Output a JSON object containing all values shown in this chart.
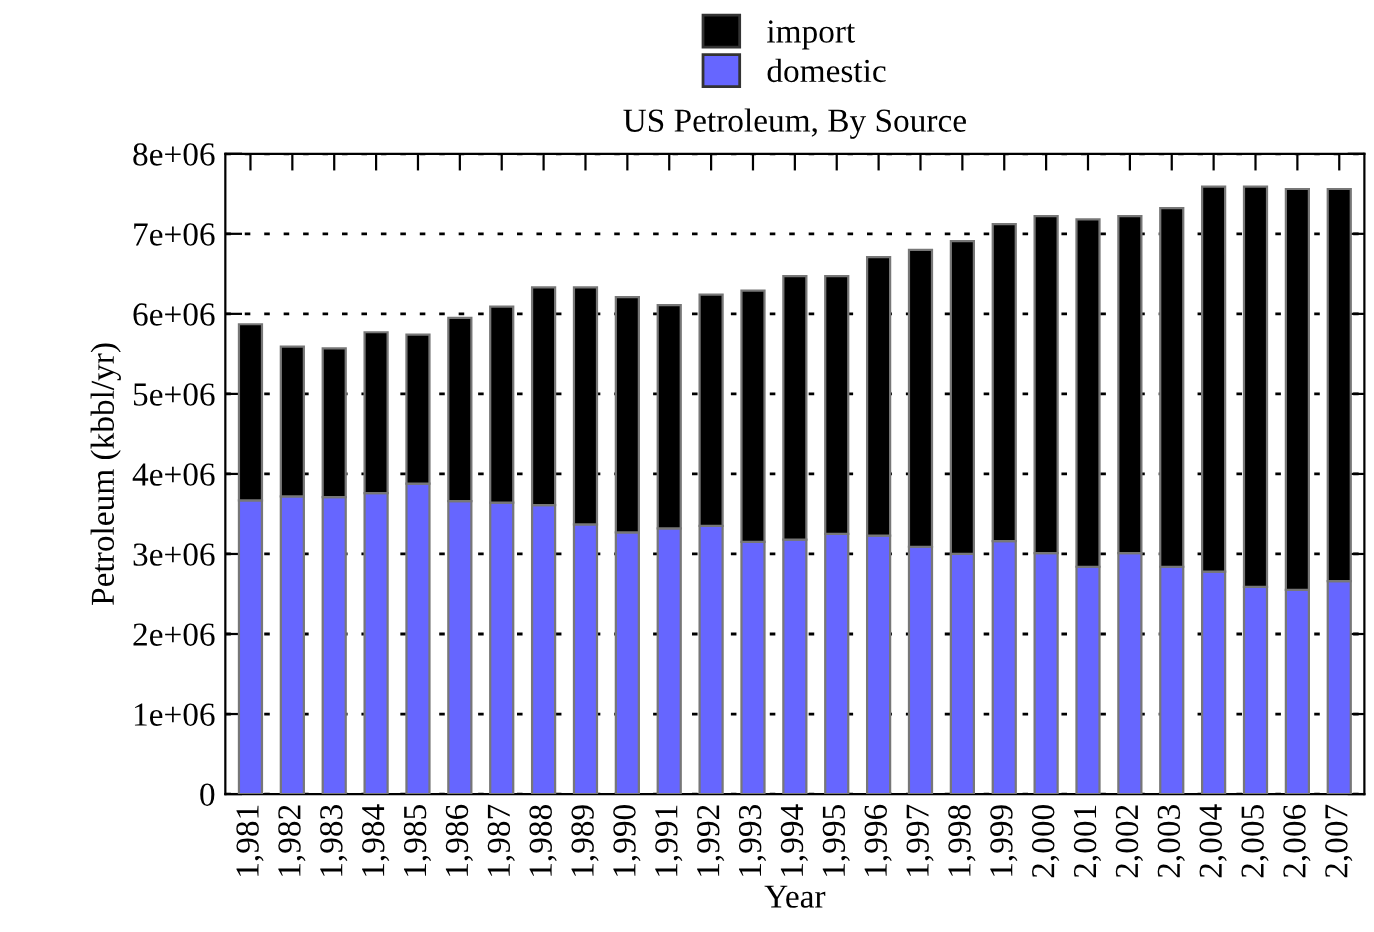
{
  "chart_data": {
    "type": "bar",
    "title": "US Petroleum, By Source",
    "xlabel": "Year",
    "ylabel": "Petroleum (kbbl/yr)",
    "categories": [
      "1,981",
      "1,982",
      "1,983",
      "1,984",
      "1,985",
      "1,986",
      "1,987",
      "1,988",
      "1,989",
      "1,990",
      "1,991",
      "1,992",
      "1,993",
      "1,994",
      "1,995",
      "1,996",
      "1,997",
      "1,998",
      "1,999",
      "2,000",
      "2,001",
      "2,002",
      "2,003",
      "2,004",
      "2,005",
      "2,006",
      "2,007"
    ],
    "stacked": true,
    "series": [
      {
        "name": "domestic",
        "color": "#6666ff",
        "values": [
          3670000,
          3720000,
          3710000,
          3760000,
          3880000,
          3660000,
          3640000,
          3610000,
          3370000,
          3270000,
          3320000,
          3350000,
          3150000,
          3180000,
          3250000,
          3230000,
          3090000,
          3000000,
          3160000,
          3010000,
          2840000,
          3010000,
          2840000,
          2780000,
          2590000,
          2550000,
          2660000
        ]
      },
      {
        "name": "import",
        "color": "#000000",
        "values": [
          2200000,
          1870000,
          1860000,
          2010000,
          1860000,
          2290000,
          2450000,
          2720000,
          2960000,
          2940000,
          2790000,
          2890000,
          3140000,
          3290000,
          3220000,
          3480000,
          3710000,
          3910000,
          3960000,
          4210000,
          4340000,
          4210000,
          4480000,
          4810000,
          5000000,
          5010000,
          4900000
        ]
      }
    ],
    "ylim": [
      0,
      8000000
    ],
    "yticks": [
      0,
      {
        "value": 1000000,
        "label": "1e+06"
      },
      {
        "value": 2000000,
        "label": "2e+06"
      },
      {
        "value": 3000000,
        "label": "3e+06"
      },
      {
        "value": 4000000,
        "label": "4e+06"
      },
      {
        "value": 5000000,
        "label": "5e+06"
      },
      {
        "value": 6000000,
        "label": "6e+06"
      },
      {
        "value": 7000000,
        "label": "7e+06"
      },
      {
        "value": 8000000,
        "label": "8e+06"
      }
    ],
    "grid": "y",
    "legend": "top"
  }
}
